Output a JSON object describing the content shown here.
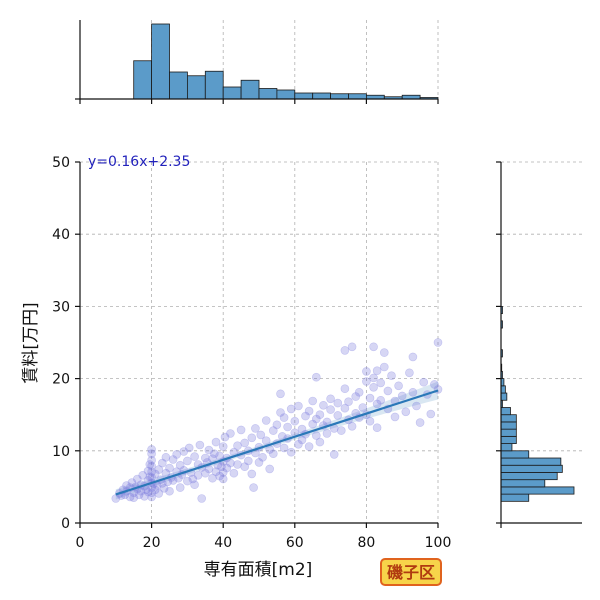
{
  "chart_data": {
    "type": "scatter",
    "xlabel": "専有面積[m2]",
    "ylabel": "賃料[万円]",
    "xlim": [
      0,
      100
    ],
    "ylim": [
      0,
      50
    ],
    "xticks": [
      "0",
      "20",
      "40",
      "60",
      "80",
      "100"
    ],
    "yticks": [
      "0",
      "10",
      "20",
      "30",
      "40",
      "50"
    ],
    "grid": true,
    "regression": {
      "slope": 0.16,
      "intercept": 2.35,
      "x_range": [
        10,
        100
      ],
      "label": "y=0.16x+2.35"
    },
    "points": [
      [
        10,
        3.4
      ],
      [
        11,
        4.1
      ],
      [
        11.5,
        3.8
      ],
      [
        12,
        4.6
      ],
      [
        12.5,
        3.9
      ],
      [
        13,
        5.2
      ],
      [
        13,
        4.4
      ],
      [
        14,
        3.6
      ],
      [
        14,
        4.9
      ],
      [
        14.5,
        5.6
      ],
      [
        15,
        4.2
      ],
      [
        15,
        3.5
      ],
      [
        15.5,
        5.0
      ],
      [
        16,
        6.1
      ],
      [
        16,
        4.7
      ],
      [
        16.5,
        3.9
      ],
      [
        17,
        5.3
      ],
      [
        17,
        4.4
      ],
      [
        17.5,
        6.6
      ],
      [
        18,
        3.7
      ],
      [
        18,
        5.1
      ],
      [
        18.5,
        4.6
      ],
      [
        19,
        7.2
      ],
      [
        19,
        5.9
      ],
      [
        19,
        4.3
      ],
      [
        19.5,
        8.1
      ],
      [
        19.5,
        6.4
      ],
      [
        20,
        9.6
      ],
      [
        20,
        8.7
      ],
      [
        20,
        7.9
      ],
      [
        20,
        7.1
      ],
      [
        20,
        6.3
      ],
      [
        20,
        5.6
      ],
      [
        20,
        4.9
      ],
      [
        20,
        4.2
      ],
      [
        20,
        3.6
      ],
      [
        20,
        10.2
      ],
      [
        20.5,
        5.4
      ],
      [
        21,
        4.6
      ],
      [
        21,
        6.8
      ],
      [
        21.5,
        5.2
      ],
      [
        22,
        7.4
      ],
      [
        22,
        4.1
      ],
      [
        22.5,
        6.0
      ],
      [
        23,
        8.3
      ],
      [
        23,
        5.5
      ],
      [
        23.5,
        4.8
      ],
      [
        24,
        6.9
      ],
      [
        24,
        9.1
      ],
      [
        24.5,
        5.7
      ],
      [
        25,
        7.6
      ],
      [
        25,
        4.4
      ],
      [
        25.5,
        6.3
      ],
      [
        26,
        8.8
      ],
      [
        26,
        5.9
      ],
      [
        27,
        7.1
      ],
      [
        27,
        9.5
      ],
      [
        27.5,
        6.2
      ],
      [
        28,
        4.9
      ],
      [
        28,
        8.0
      ],
      [
        28.5,
        6.7
      ],
      [
        29,
        9.9
      ],
      [
        29,
        7.3
      ],
      [
        30,
        5.8
      ],
      [
        30,
        8.6
      ],
      [
        30.5,
        10.4
      ],
      [
        31,
        7.0
      ],
      [
        31.5,
        6.1
      ],
      [
        32,
        9.2
      ],
      [
        32,
        5.3
      ],
      [
        33,
        8.1
      ],
      [
        33,
        6.6
      ],
      [
        33.5,
        10.8
      ],
      [
        34,
        7.7
      ],
      [
        34,
        3.4
      ],
      [
        35,
        9.0
      ],
      [
        35,
        6.9
      ],
      [
        35.5,
        8.4
      ],
      [
        36,
        7.5
      ],
      [
        36,
        10.1
      ],
      [
        37,
        6.2
      ],
      [
        37,
        8.9
      ],
      [
        37.5,
        9.6
      ],
      [
        38,
        7.1
      ],
      [
        38,
        11.2
      ],
      [
        38.5,
        8.0
      ],
      [
        39,
        6.5
      ],
      [
        39,
        9.3
      ],
      [
        39.5,
        7.8
      ],
      [
        40,
        10.6
      ],
      [
        40,
        8.5
      ],
      [
        40,
        7.0
      ],
      [
        40,
        6.1
      ],
      [
        40.5,
        11.9
      ],
      [
        41,
        9.0
      ],
      [
        41,
        7.6
      ],
      [
        42,
        12.4
      ],
      [
        42,
        8.3
      ],
      [
        43,
        9.8
      ],
      [
        43,
        6.9
      ],
      [
        44,
        10.7
      ],
      [
        44,
        8.1
      ],
      [
        45,
        12.9
      ],
      [
        45,
        9.4
      ],
      [
        46,
        11.1
      ],
      [
        46,
        7.8
      ],
      [
        47,
        10.0
      ],
      [
        47,
        8.6
      ],
      [
        48,
        11.8
      ],
      [
        48,
        6.8
      ],
      [
        48.5,
        4.9
      ],
      [
        49,
        9.7
      ],
      [
        49,
        13.1
      ],
      [
        50,
        10.5
      ],
      [
        50,
        8.4
      ],
      [
        50.5,
        12.2
      ],
      [
        51,
        9.1
      ],
      [
        52,
        11.4
      ],
      [
        52,
        14.2
      ],
      [
        53,
        10.2
      ],
      [
        53,
        7.5
      ],
      [
        54,
        12.8
      ],
      [
        54,
        9.6
      ],
      [
        55,
        13.6
      ],
      [
        55,
        11.0
      ],
      [
        56,
        15.3
      ],
      [
        56,
        17.9
      ],
      [
        56.5,
        12.0
      ],
      [
        57,
        10.4
      ],
      [
        57,
        14.6
      ],
      [
        58,
        11.7
      ],
      [
        58,
        13.3
      ],
      [
        59,
        9.8
      ],
      [
        59,
        15.8
      ],
      [
        60,
        12.5
      ],
      [
        60,
        14.1
      ],
      [
        61,
        10.9
      ],
      [
        61,
        16.2
      ],
      [
        62,
        13.0
      ],
      [
        62,
        11.5
      ],
      [
        63,
        14.8
      ],
      [
        63,
        12.3
      ],
      [
        64,
        15.5
      ],
      [
        64,
        10.6
      ],
      [
        65,
        13.7
      ],
      [
        65,
        16.9
      ],
      [
        66,
        12.1
      ],
      [
        66,
        14.4
      ],
      [
        67,
        15.0
      ],
      [
        67,
        11.2
      ],
      [
        68,
        16.3
      ],
      [
        68,
        13.5
      ],
      [
        69,
        14.0
      ],
      [
        69,
        12.4
      ],
      [
        70,
        15.7
      ],
      [
        70,
        17.2
      ],
      [
        71,
        13.1
      ],
      [
        71,
        9.5
      ],
      [
        72,
        16.6
      ],
      [
        72,
        14.9
      ],
      [
        73,
        12.8
      ],
      [
        74,
        15.9
      ],
      [
        74,
        18.6
      ],
      [
        75,
        14.3
      ],
      [
        75,
        16.8
      ],
      [
        76,
        13.4
      ],
      [
        77,
        17.5
      ],
      [
        77,
        15.2
      ],
      [
        78,
        14.6
      ],
      [
        78,
        18.1
      ],
      [
        79,
        16.0
      ],
      [
        80,
        15.0
      ],
      [
        80,
        19.6
      ],
      [
        80,
        21.0
      ],
      [
        81,
        17.3
      ],
      [
        81,
        14.1
      ],
      [
        82,
        18.8
      ],
      [
        82,
        20.1
      ],
      [
        83,
        16.5
      ],
      [
        83,
        13.2
      ],
      [
        84,
        19.4
      ],
      [
        84,
        17.0
      ],
      [
        85,
        21.6
      ],
      [
        86,
        15.8
      ],
      [
        86,
        18.3
      ],
      [
        87,
        20.4
      ],
      [
        88,
        16.9
      ],
      [
        88,
        14.7
      ],
      [
        89,
        19.0
      ],
      [
        90,
        17.6
      ],
      [
        91,
        15.4
      ],
      [
        92,
        20.8
      ],
      [
        93,
        18.1
      ],
      [
        94,
        16.2
      ],
      [
        95,
        13.9
      ],
      [
        96,
        19.5
      ],
      [
        97,
        17.8
      ],
      [
        98,
        15.1
      ],
      [
        99,
        19.2
      ],
      [
        100,
        18.5
      ],
      [
        74,
        23.9
      ],
      [
        76,
        24.4
      ],
      [
        82,
        24.4
      ],
      [
        85,
        23.6
      ],
      [
        93,
        23.0
      ],
      [
        100,
        25.0
      ],
      [
        66,
        20.2
      ],
      [
        83,
        21.1
      ]
    ],
    "top_histogram": {
      "bins": [
        [
          10,
          15
        ],
        [
          15,
          20
        ],
        [
          20,
          25
        ],
        [
          25,
          30
        ],
        [
          30,
          35
        ],
        [
          35,
          40
        ],
        [
          40,
          45
        ],
        [
          45,
          50
        ],
        [
          50,
          55
        ],
        [
          55,
          60
        ],
        [
          60,
          65
        ],
        [
          65,
          70
        ],
        [
          70,
          75
        ],
        [
          75,
          80
        ],
        [
          80,
          85
        ],
        [
          85,
          90
        ],
        [
          90,
          95
        ],
        [
          95,
          100
        ]
      ],
      "counts": [
        0,
        40,
        59,
        21,
        18,
        22,
        9,
        15,
        8,
        7,
        5,
        5,
        4,
        4,
        3,
        2,
        3,
        1
      ],
      "heights_relative": [
        0.0,
        0.51,
        1.0,
        0.36,
        0.31,
        0.37,
        0.16,
        0.25,
        0.14,
        0.12,
        0.08,
        0.08,
        0.07,
        0.07,
        0.05,
        0.03,
        0.05,
        0.02
      ]
    },
    "right_histogram": {
      "bin_edges_y": [
        3,
        4,
        5,
        6,
        7,
        8,
        9,
        10,
        11,
        12,
        13,
        14,
        15,
        16,
        17,
        18,
        19,
        20,
        21,
        22,
        23,
        24,
        25,
        26,
        27,
        28,
        29,
        30
      ],
      "widths_relative": [
        0.38,
        1.0,
        0.6,
        0.77,
        0.84,
        0.82,
        0.38,
        0.15,
        0.21,
        0.21,
        0.21,
        0.21,
        0.13,
        0.02,
        0.08,
        0.06,
        0.04,
        0.02,
        0.01,
        0.0,
        0.02,
        0.0,
        0.0,
        0.0,
        0.02,
        0.0,
        0.02
      ]
    }
  },
  "badge": {
    "label": "磯子区",
    "colors": {
      "fill": "#f7d44a",
      "border": "#e0631e",
      "text": "#b03a10"
    }
  },
  "colors": {
    "histogram": "#5b9bc9",
    "scatter": "#6a6ad8",
    "regression": "#2a78b8",
    "equation": "#2222bb"
  }
}
